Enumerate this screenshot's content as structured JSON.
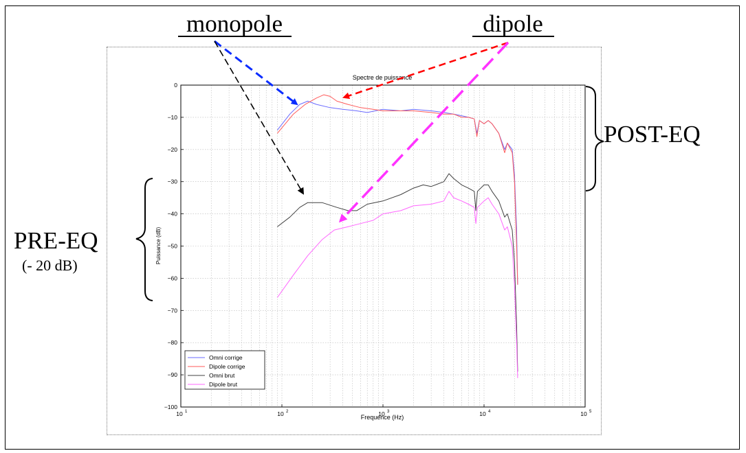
{
  "annotations": {
    "monopole": "monopole",
    "dipole": "dipole",
    "post_eq": "POST-EQ",
    "pre_eq": "PRE-EQ",
    "pre_eq_note": "(- 20 dB)"
  },
  "colors": {
    "omni_corrige": "#6a6aff",
    "dipole_corrige": "#ff5a5a",
    "omni_brut": "#404040",
    "dipole_brut": "#ff66ff",
    "arrow_monopole_1": "#0a2cff",
    "arrow_monopole_2": "#000000",
    "arrow_dipole_1": "#ff0000",
    "arrow_dipole_2": "#ff33ff"
  },
  "chart_data": {
    "type": "line",
    "title": "Spectre de puissance",
    "xlabel": "Frequence  (Hz)",
    "ylabel": "Puissance (dB)",
    "xscale": "log",
    "xlim": [
      10,
      100000
    ],
    "ylim": [
      -100,
      0
    ],
    "grid": true,
    "legend_position": "bottom-left",
    "x_ticks": [
      {
        "base": "10",
        "exp": "1",
        "value": 10
      },
      {
        "base": "10",
        "exp": "2",
        "value": 100
      },
      {
        "base": "10",
        "exp": "3",
        "value": 1000
      },
      {
        "base": "10",
        "exp": "4",
        "value": 10000
      },
      {
        "base": "10",
        "exp": "5",
        "value": 100000
      }
    ],
    "y_ticks": [
      "0",
      "−10",
      "−20",
      "−30",
      "−40",
      "−50",
      "−60",
      "−70",
      "−80",
      "−90",
      "−100"
    ],
    "series": [
      {
        "name": "Omni corrige",
        "points": [
          [
            90,
            -14
          ],
          [
            120,
            -9
          ],
          [
            150,
            -6
          ],
          [
            180,
            -5
          ],
          [
            220,
            -6
          ],
          [
            300,
            -7
          ],
          [
            400,
            -7.5
          ],
          [
            550,
            -8
          ],
          [
            700,
            -8.5
          ],
          [
            1000,
            -7.5
          ],
          [
            1500,
            -8
          ],
          [
            2000,
            -7.5
          ],
          [
            3000,
            -8
          ],
          [
            4000,
            -8.5
          ],
          [
            5000,
            -9
          ],
          [
            6000,
            -9.5
          ],
          [
            7000,
            -10
          ],
          [
            8000,
            -10.5
          ],
          [
            8500,
            -15
          ],
          [
            9000,
            -11
          ],
          [
            10000,
            -12
          ],
          [
            11000,
            -11
          ],
          [
            12000,
            -12
          ],
          [
            14000,
            -15
          ],
          [
            16000,
            -20
          ],
          [
            17000,
            -18
          ],
          [
            19000,
            -20
          ],
          [
            20000,
            -28
          ],
          [
            21000,
            -45
          ],
          [
            21500,
            -62
          ]
        ]
      },
      {
        "name": "Dipole corrige",
        "points": [
          [
            90,
            -15
          ],
          [
            130,
            -9
          ],
          [
            170,
            -6
          ],
          [
            220,
            -4
          ],
          [
            260,
            -3
          ],
          [
            300,
            -3.5
          ],
          [
            350,
            -5
          ],
          [
            450,
            -6
          ],
          [
            600,
            -7
          ],
          [
            800,
            -7.5
          ],
          [
            1000,
            -8
          ],
          [
            1500,
            -8
          ],
          [
            2000,
            -8
          ],
          [
            3000,
            -8.5
          ],
          [
            4000,
            -9
          ],
          [
            5000,
            -9
          ],
          [
            6000,
            -10
          ],
          [
            7000,
            -10
          ],
          [
            8000,
            -10.5
          ],
          [
            8500,
            -16
          ],
          [
            9000,
            -11
          ],
          [
            10000,
            -12
          ],
          [
            11000,
            -11
          ],
          [
            12000,
            -12
          ],
          [
            14000,
            -15
          ],
          [
            16000,
            -21
          ],
          [
            17000,
            -18
          ],
          [
            19000,
            -21
          ],
          [
            20000,
            -30
          ],
          [
            21000,
            -50
          ],
          [
            21500,
            -62
          ]
        ]
      },
      {
        "name": "Omni brut",
        "points": [
          [
            90,
            -44
          ],
          [
            120,
            -41
          ],
          [
            150,
            -38
          ],
          [
            180,
            -36.5
          ],
          [
            250,
            -36.5
          ],
          [
            350,
            -38
          ],
          [
            450,
            -39
          ],
          [
            550,
            -39
          ],
          [
            700,
            -37
          ],
          [
            1000,
            -36
          ],
          [
            1500,
            -34
          ],
          [
            2000,
            -32
          ],
          [
            2500,
            -31
          ],
          [
            3000,
            -31.5
          ],
          [
            4000,
            -30
          ],
          [
            4500,
            -27.5
          ],
          [
            5000,
            -29
          ],
          [
            6000,
            -31
          ],
          [
            7000,
            -32
          ],
          [
            8000,
            -33
          ],
          [
            8300,
            -39
          ],
          [
            8600,
            -33
          ],
          [
            10000,
            -31
          ],
          [
            11000,
            -31
          ],
          [
            12000,
            -33
          ],
          [
            14000,
            -36
          ],
          [
            16000,
            -41
          ],
          [
            17000,
            -40
          ],
          [
            19000,
            -45
          ],
          [
            20000,
            -55
          ],
          [
            21000,
            -75
          ],
          [
            21500,
            -89
          ]
        ]
      },
      {
        "name": "Dipole brut",
        "points": [
          [
            90,
            -66
          ],
          [
            130,
            -59
          ],
          [
            180,
            -53
          ],
          [
            250,
            -48
          ],
          [
            330,
            -45
          ],
          [
            450,
            -44
          ],
          [
            600,
            -43
          ],
          [
            800,
            -42
          ],
          [
            1000,
            -40
          ],
          [
            1500,
            -39
          ],
          [
            2000,
            -37.5
          ],
          [
            3000,
            -37
          ],
          [
            4000,
            -36
          ],
          [
            4500,
            -33
          ],
          [
            5000,
            -35
          ],
          [
            6000,
            -36
          ],
          [
            7000,
            -37
          ],
          [
            8000,
            -38
          ],
          [
            8300,
            -43
          ],
          [
            8600,
            -38
          ],
          [
            10000,
            -36
          ],
          [
            11000,
            -35
          ],
          [
            12000,
            -37
          ],
          [
            14000,
            -40
          ],
          [
            16000,
            -45
          ],
          [
            17000,
            -44
          ],
          [
            19000,
            -50
          ],
          [
            20000,
            -62
          ],
          [
            21000,
            -80
          ],
          [
            21500,
            -91
          ]
        ]
      }
    ]
  }
}
